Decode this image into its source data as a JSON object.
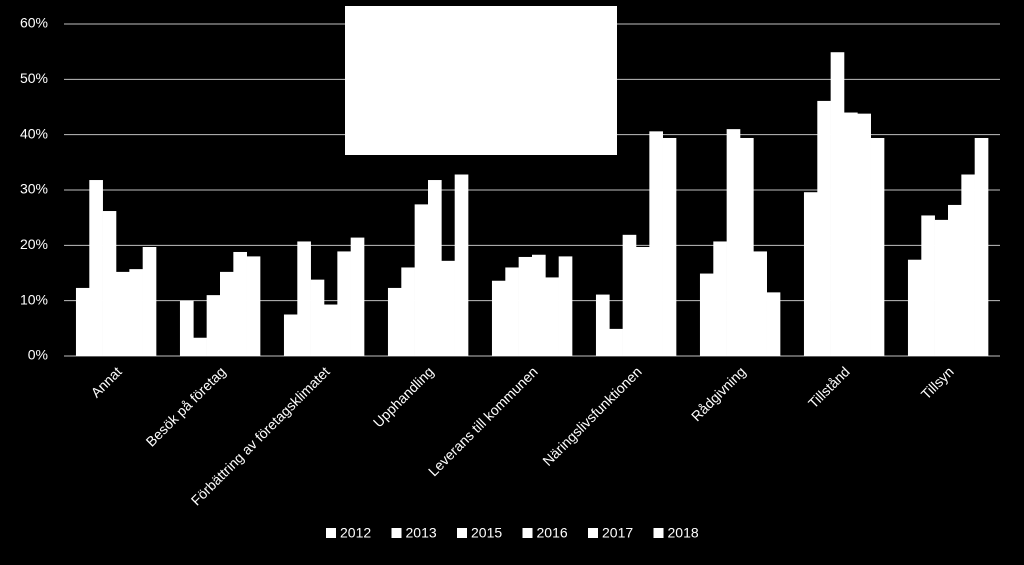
{
  "chart_data": {
    "type": "bar",
    "categories": [
      "Annat",
      "Besök på företag",
      "Förbättring av företagsklimatet",
      "Upphandling",
      "Leverans till kommunen",
      "Näringslivsfunktionen",
      "Rådgivning",
      "Tillstånd",
      "Tillsyn"
    ],
    "series": [
      {
        "name": "2012",
        "color": "#ffffff",
        "values": [
          12.3,
          10,
          7.5,
          12.3,
          13.6,
          11.1,
          14.9,
          29.6,
          17.4
        ]
      },
      {
        "name": "2013",
        "color": "#ffffff",
        "values": [
          31.8,
          3.3,
          20.7,
          16,
          16,
          4.9,
          20.7,
          46.1,
          25.4
        ]
      },
      {
        "name": "2015",
        "color": "#ffffff",
        "values": [
          26.2,
          11,
          13.8,
          27.4,
          17.9,
          21.9,
          41,
          54.9,
          24.6
        ]
      },
      {
        "name": "2016",
        "color": "#ffffff",
        "values": [
          15.2,
          15.2,
          9.3,
          31.8,
          18.3,
          19.7,
          39.4,
          44,
          27.3
        ]
      },
      {
        "name": "2017",
        "color": "#ffffff",
        "values": [
          15.7,
          18.8,
          18.9,
          17.2,
          14.2,
          40.6,
          18.9,
          43.8,
          32.8
        ]
      },
      {
        "name": "2018",
        "color": "#ffffff",
        "values": [
          19.7,
          18,
          21.4,
          32.8,
          18,
          39.4,
          11.5,
          39.4,
          39.4
        ]
      }
    ],
    "ylim": [
      0,
      60
    ],
    "yticks": [
      {
        "value": 0,
        "label": "0%"
      },
      {
        "value": 10,
        "label": "10%"
      },
      {
        "value": 20,
        "label": "20%"
      },
      {
        "value": 30,
        "label": "30%"
      },
      {
        "value": 40,
        "label": "40%"
      },
      {
        "value": 50,
        "label": "50%"
      },
      {
        "value": 60,
        "label": "60%"
      }
    ],
    "grid": true,
    "legend": "bottom"
  }
}
